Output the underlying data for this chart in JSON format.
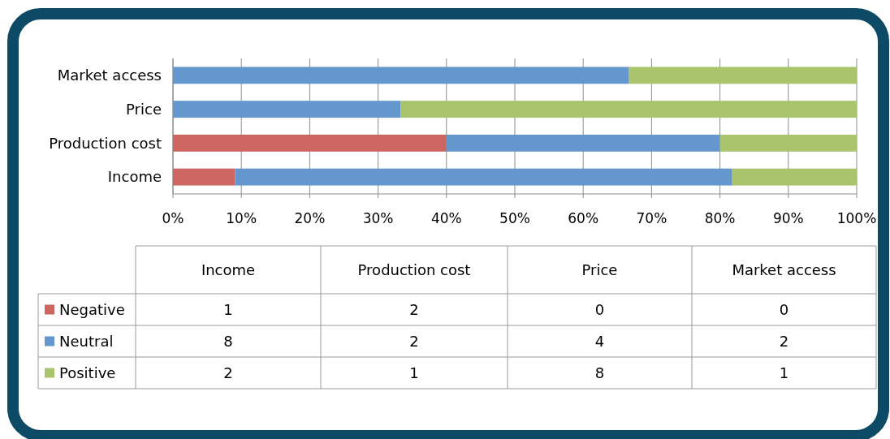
{
  "chart_data": [
    {
      "type": "bar",
      "orientation": "horizontal",
      "stacked": true,
      "categories": [
        "Market access",
        "Price",
        "Production cost",
        "Income"
      ],
      "series": [
        {
          "name": "Negative",
          "color": "#cd6660",
          "values": [
            0,
            0,
            40,
            9.1
          ]
        },
        {
          "name": "Neutral",
          "color": "#6497cd",
          "values": [
            66.7,
            33.3,
            40,
            72.7
          ]
        },
        {
          "name": "Positive",
          "color": "#a9c46c",
          "values": [
            33.3,
            66.7,
            20,
            18.2
          ]
        }
      ],
      "xlim": [
        0,
        100
      ],
      "xticks": [
        {
          "value": 0,
          "label": "0%"
        },
        {
          "value": 10,
          "label": "10%"
        },
        {
          "value": 20,
          "label": "20%"
        },
        {
          "value": 30,
          "label": "30%"
        },
        {
          "value": 40,
          "label": "40%"
        },
        {
          "value": 50,
          "label": "50%"
        },
        {
          "value": 60,
          "label": "60%"
        },
        {
          "value": 70,
          "label": "70%"
        },
        {
          "value": 80,
          "label": "80%"
        },
        {
          "value": 90,
          "label": "90%"
        },
        {
          "value": 100,
          "label": "100%"
        }
      ],
      "grid": "x",
      "legend": "bottom"
    },
    {
      "type": "other",
      "categories": [
        "Income",
        "Production cost",
        "Price",
        "Market access"
      ],
      "series": [
        {
          "values": [
            1,
            2,
            0,
            0
          ]
        },
        {
          "values": [
            8,
            2,
            4,
            2
          ]
        },
        {
          "values": [
            2,
            1,
            8,
            1
          ]
        }
      ],
      "data_labels": true
    }
  ]
}
